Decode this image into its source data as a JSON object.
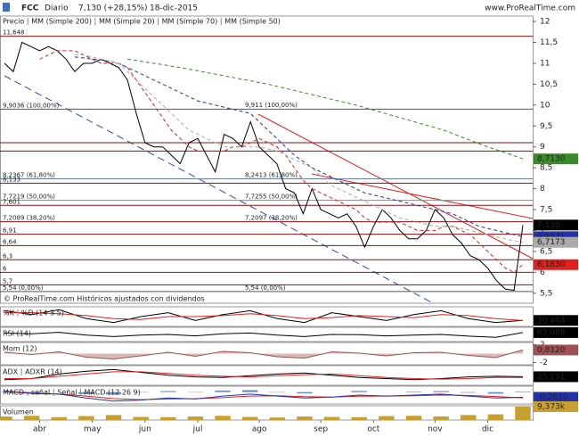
{
  "header": {
    "symbol": "FCC",
    "period": "Diario",
    "price": "7,130 (+28,15%)",
    "date": "18-dic-2015",
    "site": "www.ProRealTime.com",
    "footer": "© ProRealTime.com   Históricos ajustados con dividendos"
  },
  "chart_data": [
    {
      "type": "line",
      "ylim": [
        5.26,
        12.13
      ],
      "yticks": [
        12,
        {
          "value": 11.5,
          "label": "11,5"
        },
        11,
        {
          "value": 10.5,
          "label": "10,5"
        },
        10,
        {
          "value": 9.5,
          "label": "9,5"
        },
        9,
        {
          "value": 8.5,
          "label": "8,5"
        },
        8,
        {
          "value": 7.5,
          "label": "7,5"
        },
        7,
        {
          "value": 6.5,
          "label": "6,5"
        },
        6,
        {
          "value": 5.5,
          "label": "5,5"
        }
      ],
      "categories": [
        null,
        null,
        null,
        null,
        "abr",
        null,
        null,
        null,
        null,
        null,
        "may",
        null,
        null,
        null,
        null,
        null,
        "jun",
        null,
        null,
        null,
        null,
        null,
        "jul",
        null,
        null,
        null,
        null,
        null,
        null,
        "ago",
        null,
        null,
        null,
        null,
        null,
        null,
        "sep",
        null,
        null,
        null,
        null,
        null,
        "oct",
        null,
        null,
        null,
        null,
        null,
        null,
        "nov",
        null,
        null,
        null,
        null,
        null,
        "dic",
        null,
        null,
        null,
        null
      ],
      "series": [
        {
          "name": "Precio",
          "color": "#000000",
          "last_label": "7,130",
          "values": [
            11.0,
            10.8,
            11.5,
            11.4,
            11.3,
            11.4,
            11.3,
            11.1,
            10.8,
            11.0,
            11.0,
            11.1,
            11.0,
            10.9,
            10.6,
            9.8,
            9.1,
            9.0,
            9.0,
            8.8,
            8.6,
            9.1,
            9.2,
            8.8,
            8.4,
            9.3,
            9.2,
            9.0,
            9.6,
            9.0,
            8.8,
            8.6,
            8.0,
            7.9,
            7.4,
            8.0,
            7.5,
            7.4,
            7.3,
            7.4,
            7.1,
            6.6,
            7.1,
            7.5,
            7.3,
            7.0,
            6.8,
            6.8,
            7.0,
            7.5,
            7.3,
            6.9,
            6.7,
            6.4,
            6.3,
            6.1,
            5.8,
            5.6,
            5.57,
            7.13
          ]
        },
        {
          "name": "MM (Simple 200)",
          "color": "#3a8a2a",
          "dash": true,
          "last_label": "8,7130",
          "values": [
            null,
            null,
            null,
            null,
            null,
            null,
            null,
            null,
            null,
            null,
            null,
            null,
            null,
            null,
            11.1,
            11.07,
            11.03,
            11.0,
            10.97,
            10.93,
            10.9,
            10.86,
            10.82,
            10.78,
            10.74,
            10.7,
            10.66,
            10.62,
            10.58,
            10.54,
            10.5,
            10.45,
            10.4,
            10.35,
            10.3,
            10.25,
            10.2,
            10.15,
            10.1,
            10.05,
            10.0,
            9.94,
            9.88,
            9.82,
            9.76,
            9.7,
            9.64,
            9.58,
            9.52,
            9.46,
            9.4,
            9.32,
            9.24,
            9.16,
            9.08,
            9.0,
            8.93,
            8.86,
            8.79,
            8.713
          ]
        },
        {
          "name": "MM (Simple 20)",
          "color": "#e0201c",
          "dash": true,
          "last_label": "6,1830",
          "values": [
            null,
            null,
            null,
            null,
            11.1,
            11.2,
            11.3,
            11.3,
            11.3,
            11.2,
            11.1,
            11.0,
            11.0,
            11.0,
            10.9,
            10.6,
            10.3,
            10.0,
            9.7,
            9.4,
            9.2,
            9.0,
            8.9,
            8.9,
            8.9,
            8.9,
            9.0,
            9.0,
            9.1,
            9.2,
            9.1,
            9.0,
            8.8,
            8.5,
            8.2,
            8.0,
            7.9,
            7.8,
            7.7,
            7.6,
            7.5,
            7.3,
            7.2,
            7.2,
            7.2,
            7.2,
            7.1,
            7.0,
            7.0,
            7.0,
            7.1,
            7.1,
            7.0,
            6.9,
            6.7,
            6.5,
            6.3,
            6.1,
            6.0,
            6.183
          ]
        },
        {
          "name": "MM (Simple 70)",
          "color": "#2233aa",
          "dash": true,
          "last_label": "6,8521",
          "values": [
            null,
            null,
            null,
            null,
            null,
            null,
            null,
            null,
            11.15,
            11.13,
            11.1,
            11.08,
            11.05,
            11.0,
            10.9,
            10.8,
            10.7,
            10.6,
            10.5,
            10.4,
            10.3,
            10.2,
            10.1,
            10.05,
            10.0,
            9.95,
            9.9,
            9.85,
            9.8,
            9.6,
            9.4,
            9.2,
            9.0,
            8.8,
            8.65,
            8.5,
            8.4,
            8.3,
            8.2,
            8.1,
            8.0,
            7.9,
            7.85,
            7.8,
            7.75,
            7.7,
            7.65,
            7.6,
            7.55,
            7.5,
            7.45,
            7.4,
            7.3,
            7.2,
            7.1,
            7.05,
            7.0,
            6.95,
            6.9,
            6.852
          ]
        },
        {
          "name": "MM (Simple 50)",
          "color": "#aaaaaa",
          "dash": true,
          "last_label": "6,7173",
          "values": [
            null,
            null,
            null,
            null,
            null,
            null,
            null,
            null,
            11.2,
            11.2,
            11.15,
            11.1,
            11.05,
            11.0,
            10.8,
            10.6,
            10.4,
            10.2,
            10.0,
            9.8,
            9.6,
            9.4,
            9.3,
            9.2,
            9.1,
            9.0,
            9.0,
            9.0,
            9.0,
            9.0,
            8.95,
            8.9,
            8.8,
            8.7,
            8.6,
            8.5,
            8.3,
            8.1,
            8.0,
            7.9,
            7.8,
            7.7,
            7.6,
            7.5,
            7.4,
            7.3,
            7.25,
            7.2,
            7.15,
            7.1,
            7.1,
            7.1,
            7.05,
            7.0,
            6.95,
            6.9,
            6.85,
            6.8,
            6.75,
            6.717
          ]
        }
      ],
      "levels": [
        {
          "value": 11.648,
          "label": "11,648",
          "color": "#8b1010"
        },
        {
          "value": 9.9036,
          "label": "9,9036 (100,00%)",
          "color": "#555555"
        },
        {
          "value": 9.1,
          "color": "#8b1010"
        },
        {
          "value": 8.9,
          "color": "#8b1010"
        },
        {
          "value": 8.2367,
          "label": "8,2367 (61,80%)",
          "color": "#6a7fb0"
        },
        {
          "value": 8.133,
          "label": "8,133",
          "color": "#8b1010"
        },
        {
          "value": 7.7219,
          "label": "7,7219 (50,00%)",
          "color": "#888888"
        },
        {
          "value": 7.601,
          "label": "7,601",
          "color": "#8b1010"
        },
        {
          "value": 7.2089,
          "label": "7,2089 (38,20%)",
          "color": "#8b1010"
        },
        {
          "value": 6.91,
          "label": "6,91",
          "color": "#8b1010"
        },
        {
          "value": 6.64,
          "label": "6,64",
          "color": "#8b1010"
        },
        {
          "value": 6.3,
          "label": "6,3",
          "color": "#8b1010"
        },
        {
          "value": 6,
          "label": "6",
          "color": "#8b1010"
        },
        {
          "value": 5.7,
          "label": "5,7",
          "color": "#8b1010"
        },
        {
          "value": 5.54,
          "label": "5,54 (0,00%)",
          "color": "#555555"
        }
      ],
      "annotations": [
        {
          "value": 9.911,
          "label": "9,911 (100,00%)"
        },
        {
          "value": 8.2413,
          "label": "8,2413 (61,80%)"
        },
        {
          "value": 7.7255,
          "label": "7,7255 (50,00%)"
        },
        {
          "value": 7.2097,
          "label": "7,2097 (38,20%)"
        },
        {
          "value": 5.54,
          "label": "5,54 (0,00%)"
        }
      ]
    },
    {
      "type": "line",
      "ylim": [
        0,
        100
      ],
      "series": [
        {
          "name": "%K",
          "color": "#000000",
          "last_label": "30,464",
          "values": [
            80,
            60,
            85,
            40,
            20,
            50,
            70,
            30,
            60,
            80,
            40,
            20,
            70,
            50,
            30,
            60,
            80,
            40,
            20,
            30.464
          ]
        },
        {
          "name": "%D (14 3 5)",
          "color": "#e0201c",
          "values": [
            70,
            70,
            65,
            55,
            40,
            35,
            50,
            50,
            55,
            65,
            55,
            40,
            45,
            55,
            50,
            45,
            60,
            55,
            40,
            30
          ]
        }
      ]
    },
    {
      "type": "line",
      "ylim": [
        0,
        100
      ],
      "series": [
        {
          "name": "RSI (14)",
          "color": "#000000",
          "last_label": "63,089",
          "values": [
            60,
            55,
            65,
            45,
            35,
            45,
            50,
            40,
            55,
            60,
            45,
            35,
            50,
            48,
            40,
            45,
            50,
            38,
            30,
            63.089
          ]
        }
      ]
    },
    {
      "type": "area",
      "ylim": [
        -2.5,
        2.5
      ],
      "yticks": [
        2,
        -2
      ],
      "series": [
        {
          "name": "Mom (12)",
          "color": "#a05050",
          "last_label": "0,8120",
          "values": [
            0.3,
            -0.2,
            0.4,
            -0.8,
            -1.2,
            -0.5,
            0.3,
            -0.6,
            0.5,
            0.2,
            -0.7,
            -1.0,
            0.4,
            0.1,
            -0.5,
            0.2,
            0.3,
            -0.4,
            -0.9,
            0.812
          ]
        }
      ]
    },
    {
      "type": "line",
      "ylim": [
        10,
        45
      ],
      "series": [
        {
          "name": "ADX",
          "color": "#000000",
          "last_label": "25,231",
          "values": [
            20,
            22,
            30,
            35,
            38,
            33,
            28,
            25,
            24,
            27,
            30,
            32,
            28,
            24,
            22,
            20,
            22,
            25,
            26,
            25.231
          ]
        },
        {
          "name": "ADXR (14)",
          "color": "#e0201c",
          "values": [
            22,
            22,
            26,
            30,
            34,
            34,
            31,
            28,
            26,
            25,
            27,
            29,
            30,
            27,
            24,
            22,
            21,
            22,
            24,
            24
          ]
        }
      ]
    },
    {
      "type": "line",
      "ylim": [
        -0.6,
        0.3
      ],
      "series": [
        {
          "name": "MACD-, señal",
          "color": "#6a8fc8",
          "style": "bar",
          "values": [
            0.02,
            0.02,
            0.0,
            -0.1,
            -0.12,
            -0.02,
            0.05,
            -0.02,
            0.08,
            0.1,
            -0.02,
            -0.07,
            0.0,
            0.06,
            0.0,
            0.03,
            0.05,
            -0.03,
            -0.08,
            0.03
          ]
        },
        {
          "name": "Señal",
          "color": "#e0201c",
          "values": [
            0.03,
            -0.07,
            -0.1,
            -0.2,
            -0.33,
            -0.38,
            -0.35,
            -0.33,
            -0.28,
            -0.2,
            -0.18,
            -0.23,
            -0.25,
            -0.21,
            -0.2,
            -0.18,
            -0.15,
            -0.17,
            -0.22,
            -0.29
          ]
        },
        {
          "name": "MACD (12 26 9)",
          "color": "#2233aa",
          "last_label": "-0,2610",
          "values": [
            0.05,
            -0.05,
            -0.1,
            -0.3,
            -0.45,
            -0.4,
            -0.3,
            -0.35,
            -0.2,
            -0.1,
            -0.2,
            -0.3,
            -0.25,
            -0.15,
            -0.2,
            -0.15,
            -0.1,
            -0.2,
            -0.3,
            -0.261
          ]
        }
      ]
    },
    {
      "type": "bar",
      "ylim": [
        0,
        10
      ],
      "series": [
        {
          "name": "Volumen",
          "color": "#c8a030",
          "last_label": "9,373k",
          "values": [
            2.5,
            3,
            2,
            2.8,
            3.5,
            2.2,
            2,
            2.5,
            3,
            2.2,
            1.8,
            2.5,
            2.2,
            2,
            2.8,
            3,
            2.5,
            3.5,
            4,
            9.373
          ]
        }
      ]
    }
  ]
}
